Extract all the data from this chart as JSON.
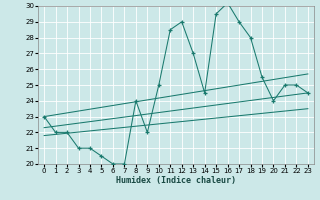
{
  "xlabel": "Humidex (Indice chaleur)",
  "bg_color": "#cce8e8",
  "grid_color": "#b0d4d4",
  "line_color": "#1a7a6e",
  "xlim": [
    -0.5,
    23.5
  ],
  "ylim": [
    20,
    30
  ],
  "xticks": [
    0,
    1,
    2,
    3,
    4,
    5,
    6,
    7,
    8,
    9,
    10,
    11,
    12,
    13,
    14,
    15,
    16,
    17,
    18,
    19,
    20,
    21,
    22,
    23
  ],
  "yticks": [
    20,
    21,
    22,
    23,
    24,
    25,
    26,
    27,
    28,
    29,
    30
  ],
  "main_x": [
    0,
    1,
    2,
    3,
    4,
    5,
    6,
    7,
    8,
    9,
    10,
    11,
    12,
    13,
    14,
    15,
    16,
    17,
    18,
    19,
    20,
    21,
    22,
    23
  ],
  "main_y": [
    23,
    22,
    22,
    21,
    21,
    20.5,
    20,
    20,
    24,
    22,
    25,
    28.5,
    29,
    27,
    24.5,
    29.5,
    30.2,
    29,
    28,
    25.5,
    24,
    25,
    25,
    24.5
  ],
  "line2_x": [
    0,
    23
  ],
  "line2_y": [
    21.8,
    23.5
  ],
  "line3_x": [
    0,
    23
  ],
  "line3_y": [
    22.3,
    24.5
  ],
  "line4_x": [
    0,
    23
  ],
  "line4_y": [
    23.0,
    25.7
  ]
}
